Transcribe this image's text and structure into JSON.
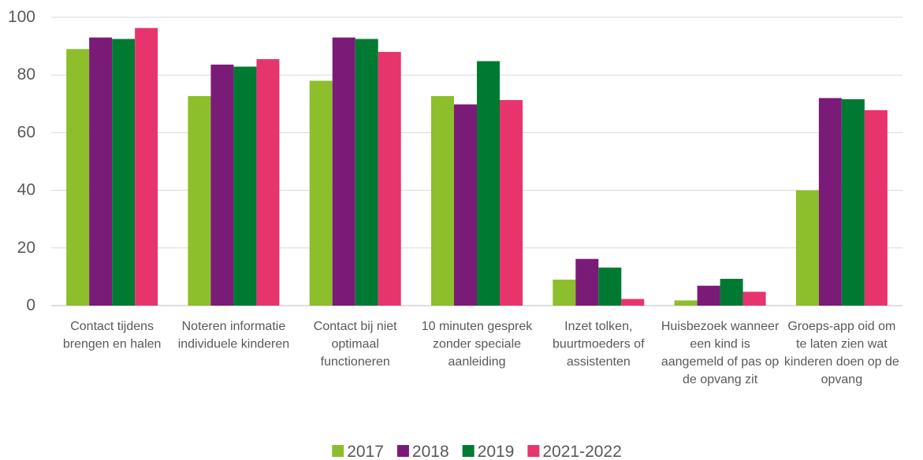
{
  "chart_data": {
    "type": "bar",
    "categories": [
      "Contact tijdens brengen en halen",
      "Noteren informatie individuele kinderen",
      "Contact bij niet optimaal functioneren",
      "10 minuten gesprek zonder speciale aanleiding",
      "Inzet tolken, buurtmoeders of assistenten",
      "Huisbezoek wanneer een kind is aangemeld of pas op de opvang zit",
      "Groeps-app oid om te laten zien wat kinderen doen op de opvang"
    ],
    "series": [
      {
        "name": "2017",
        "color": "#8dbe2b",
        "values": [
          89,
          72.7,
          78,
          72.7,
          9,
          1.8,
          40
        ]
      },
      {
        "name": "2018",
        "color": "#7b1b78",
        "values": [
          93,
          83.6,
          93,
          69.8,
          16.2,
          6.9,
          72
        ]
      },
      {
        "name": "2019",
        "color": "#007a33",
        "values": [
          92.5,
          82.9,
          92.5,
          84.8,
          13.2,
          9.3,
          71.6
        ]
      },
      {
        "name": "2021-2022",
        "color": "#e8346c",
        "values": [
          96.3,
          85.5,
          88,
          71.3,
          2.3,
          4.8,
          67.8
        ]
      }
    ],
    "ylim": [
      0,
      100
    ],
    "yticks": [
      0,
      20,
      40,
      60,
      80,
      100
    ],
    "grid": true,
    "legend": "bottom"
  }
}
